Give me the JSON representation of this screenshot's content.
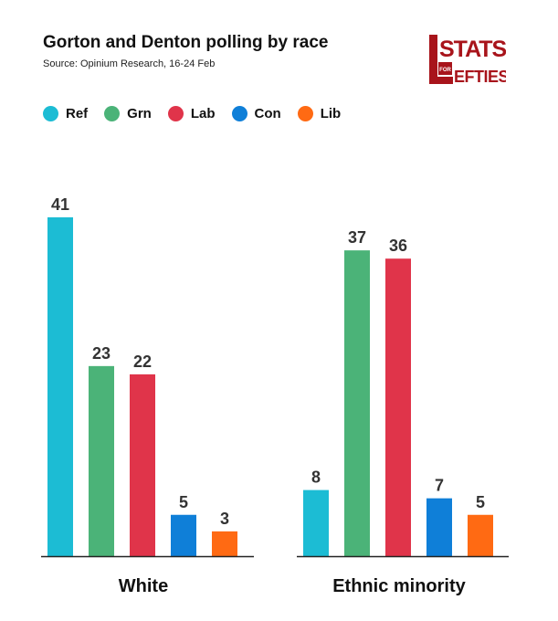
{
  "header": {
    "title": "Gorton and Denton polling by race",
    "subtitle": "Source: Opinium Research, 16-24 Feb"
  },
  "logo": {
    "text_top": "STATS",
    "text_for": "FOR",
    "text_bottom": "EFTIES",
    "color": "#a8141b"
  },
  "chart_data": {
    "type": "bar",
    "title": "Gorton and Denton polling by race",
    "subtitle": "Source: Opinium Research, 16-24 Feb",
    "categories": [
      "White",
      "Ethnic minority"
    ],
    "series": [
      {
        "name": "Ref",
        "color": "#1cbcd4",
        "values": [
          41,
          8
        ]
      },
      {
        "name": "Grn",
        "color": "#4bb378",
        "values": [
          23,
          37
        ]
      },
      {
        "name": "Lab",
        "color": "#e0344a",
        "values": [
          22,
          36
        ]
      },
      {
        "name": "Con",
        "color": "#0f7fd8",
        "values": [
          5,
          7
        ]
      },
      {
        "name": "Lib",
        "color": "#ff6a13",
        "values": [
          3,
          5
        ]
      }
    ],
    "legend": "top-left",
    "grid": false,
    "ylim": [
      0,
      41
    ],
    "xlabel": "",
    "ylabel": ""
  }
}
